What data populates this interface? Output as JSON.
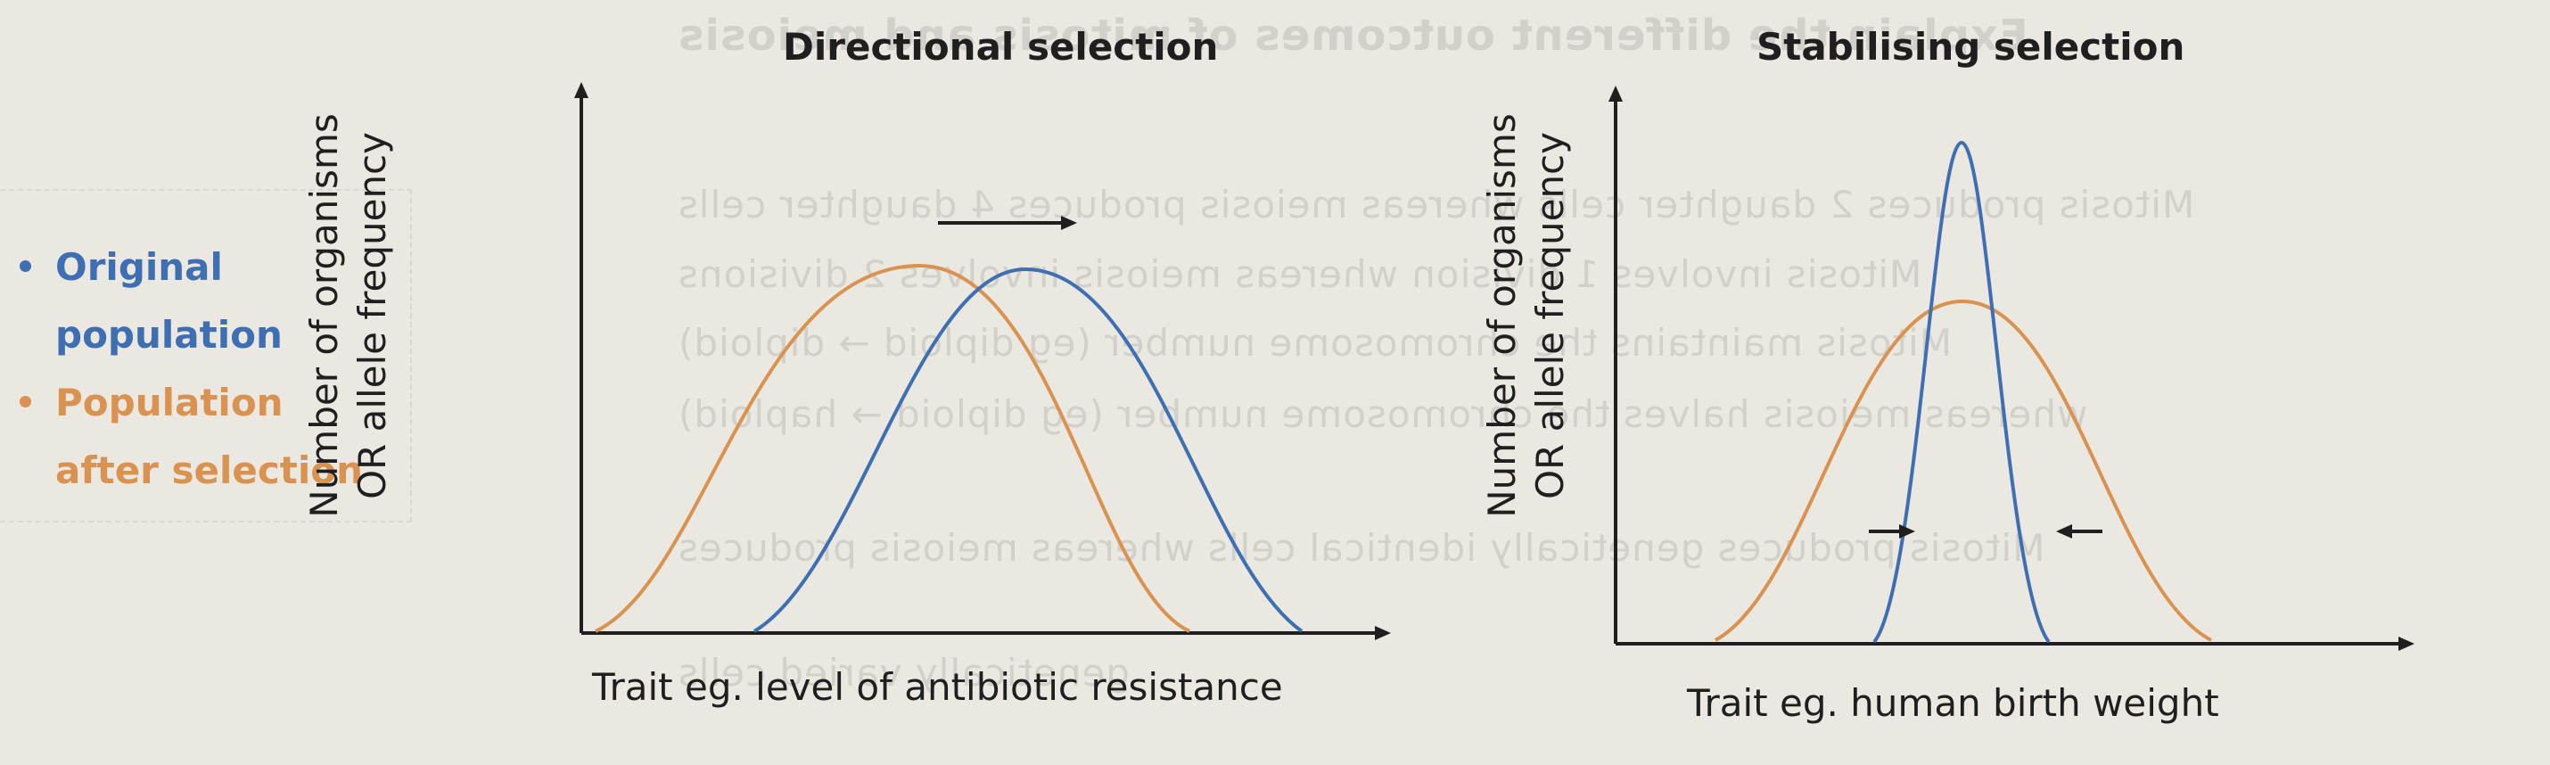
{
  "legend": {
    "original": {
      "line1": "Original",
      "line2": "population",
      "color": "#3f6fb3"
    },
    "after": {
      "line1": "Population",
      "line2": "after selection",
      "color": "#d9924f"
    }
  },
  "charts": [
    {
      "title": "Directional selection",
      "ylabel_line1": "Number of organisms",
      "ylabel_line2": "OR allele frequency",
      "xlabel": "Trait eg. level of antibiotic resistance"
    },
    {
      "title": "Stabilising selection",
      "ylabel_line1": "Number of organisms",
      "ylabel_line2": "OR allele frequency",
      "xlabel": "Trait eg. human birth weight"
    }
  ],
  "background_text": [
    "Explain the different outcomes of mitosis and meiosis",
    "Mitosis produces 2 daughter cells whereas meiosis produces 4 daughter cells",
    "Mitosis involves 1 division whereas meiosis involves 2 divisions",
    "Mitosis maintains the chromosome number (eg diploid → diploid)",
    "whereas meiosis halves the chromosome number (eg diploid → haploid)",
    "Mitosis produces genetically identical cells whereas meiosis produces",
    "genetically varied cells"
  ]
}
